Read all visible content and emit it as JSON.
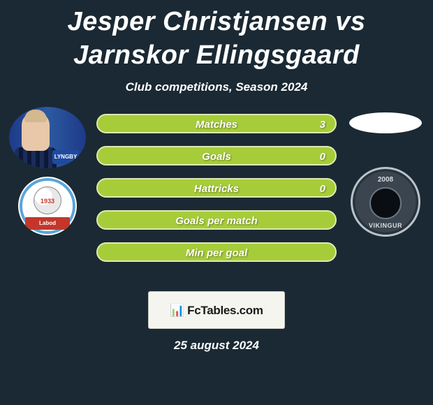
{
  "title": "Jesper Christjansen vs Jarnskor Ellingsgaard",
  "subtitle": "Club competitions, Season 2024",
  "bars": [
    {
      "label": "Matches",
      "value": "3",
      "background": "#a6cd39",
      "border": "#e0eab0"
    },
    {
      "label": "Goals",
      "value": "0",
      "background": "#a6cd39",
      "border": "#e0eab0"
    },
    {
      "label": "Hattricks",
      "value": "0",
      "background": "#a6cd39",
      "border": "#e0eab0"
    },
    {
      "label": "Goals per match",
      "value": "",
      "background": "#a6cd39",
      "border": "#e0eab0"
    },
    {
      "label": "Min per goal",
      "value": "",
      "background": "#a6cd39",
      "border": "#e0eab0"
    }
  ],
  "left": {
    "player_badge": "LYNGBY",
    "club_year": "1933",
    "club_banner": "Labod"
  },
  "right": {
    "club_year": "2008",
    "club_name": "VIKINGUR"
  },
  "footer": {
    "icon": "📊",
    "text": "FcTables.com"
  },
  "date": "25 august 2024",
  "colors": {
    "page_bg": "#1a2933",
    "bar_fill": "#a6cd39",
    "bar_border": "#e0eab0",
    "badge_bg": "#f5f5f0"
  }
}
